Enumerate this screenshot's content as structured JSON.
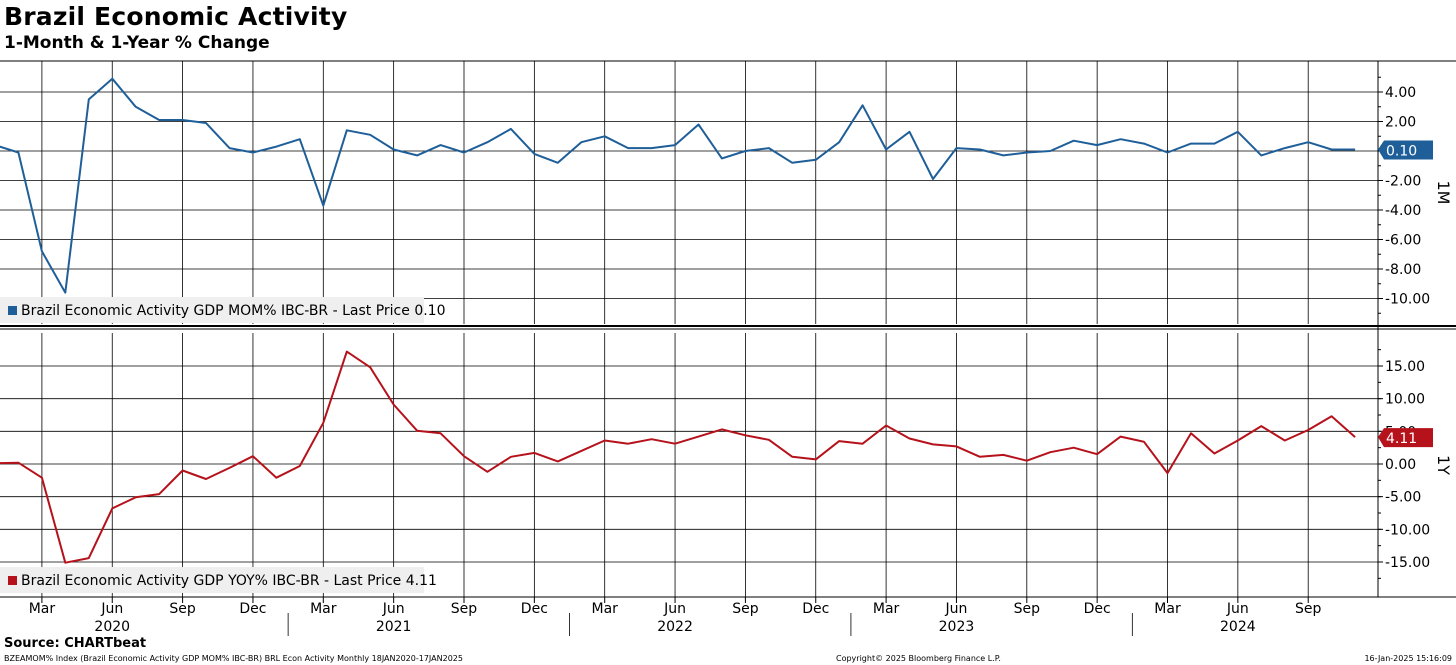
{
  "header": {
    "title": "Brazil Economic Activity",
    "subtitle": "1-Month & 1-Year % Change"
  },
  "footer": {
    "source": "Source: CHARTbeat",
    "index_info": "BZEAMOM% Index (Brazil Economic Activity GDP MOM% IBC-BR) BRL Econ Activity  Monthly 18JAN2020-17JAN2025",
    "copyright": "Copyright© 2025 Bloomberg Finance L.P.",
    "timestamp": "16-Jan-2025 15:16:09"
  },
  "chart_data": [
    {
      "type": "line",
      "panel_label": "1M",
      "legend": "Brazil Economic Activity GDP MOM% IBC-BR - Last Price 0.10",
      "last_price_label": "0.10",
      "color": "#1f5f99",
      "ylim": [
        -12,
        6
      ],
      "yticks": [
        4,
        2,
        0,
        -2,
        -4,
        -6,
        -8,
        -10
      ],
      "ytick_labels": [
        "4.00",
        "2.00",
        "0.00",
        "-2.00",
        "-4.00",
        "-6.00",
        "-8.00",
        "-10.00"
      ],
      "grid": true,
      "series": [
        {
          "values": [
            0.4,
            -0.1,
            -6.8,
            -9.6,
            3.5,
            4.9,
            3.0,
            2.1,
            2.1,
            1.9,
            0.2,
            -0.1,
            0.3,
            0.8,
            -3.7,
            1.4,
            1.1,
            0.1,
            -0.3,
            0.4,
            -0.1,
            0.6,
            1.5,
            -0.2,
            -0.8,
            0.6,
            1.0,
            0.2,
            0.2,
            0.4,
            1.8,
            -0.5,
            0.0,
            0.2,
            -0.8,
            -0.6,
            0.6,
            3.1,
            0.1,
            1.3,
            -1.9,
            0.2,
            0.1,
            -0.3,
            -0.1,
            0.0,
            0.7,
            0.4,
            0.8,
            0.5,
            -0.1,
            0.5,
            0.5,
            1.3,
            -0.3,
            0.2,
            0.6,
            0.1,
            0.1
          ]
        }
      ]
    },
    {
      "type": "line",
      "panel_label": "1Y",
      "legend": "Brazil Economic Activity GDP YOY% IBC-BR - Last Price 4.11",
      "last_price_label": "4.11",
      "color": "#b5121b",
      "ylim": [
        -20,
        20
      ],
      "yticks": [
        15,
        10,
        5,
        0,
        -5,
        -10,
        -15
      ],
      "ytick_labels": [
        "15.00",
        "10.00",
        "5.00",
        "0.00",
        "-5.00",
        "-10.00",
        "-15.00"
      ],
      "grid": true,
      "series": [
        {
          "values": [
            0.1,
            0.2,
            -2.1,
            -15.1,
            -14.4,
            -6.8,
            -5.1,
            -4.6,
            -1.0,
            -2.3,
            -0.6,
            1.2,
            -2.1,
            -0.3,
            6.3,
            17.2,
            14.8,
            9.1,
            5.1,
            4.7,
            1.2,
            -1.2,
            1.1,
            1.7,
            0.4,
            2.0,
            3.6,
            3.1,
            3.8,
            3.1,
            4.2,
            5.3,
            4.4,
            3.7,
            1.1,
            0.7,
            3.5,
            3.1,
            5.9,
            3.9,
            3.0,
            2.7,
            1.1,
            1.4,
            0.5,
            1.8,
            2.5,
            1.5,
            4.2,
            3.4,
            -1.4,
            4.7,
            1.6,
            3.6,
            5.8,
            3.6,
            5.2,
            7.3,
            4.11
          ]
        }
      ]
    }
  ],
  "x_axis": {
    "month_labels": [
      "Mar",
      "Jun",
      "Sep",
      "Dec",
      "Mar",
      "Jun",
      "Sep",
      "Dec",
      "Mar",
      "Jun",
      "Sep",
      "Dec",
      "Mar",
      "Jun",
      "Sep",
      "Dec",
      "Mar",
      "Jun",
      "Sep"
    ],
    "year_labels": [
      "2020",
      "2021",
      "2022",
      "2023",
      "2024"
    ]
  }
}
